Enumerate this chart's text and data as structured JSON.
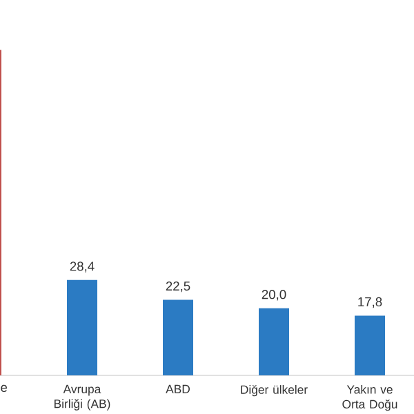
{
  "chart_data": {
    "type": "bar",
    "categories": [
      "e",
      "Avrupa Birliği (AB)",
      "ABD",
      "Diğer ülkeler",
      "Yakın ve Orta Doğu"
    ],
    "values": [
      97,
      28.4,
      22.5,
      20.0,
      17.8
    ],
    "colors": [
      "#c0504d",
      "#2b7bc3",
      "#2b7bc3",
      "#2b7bc3",
      "#2b7bc3"
    ],
    "value_labels": [
      null,
      "28,4",
      "22,5",
      "20,0",
      "17,8"
    ]
  }
}
